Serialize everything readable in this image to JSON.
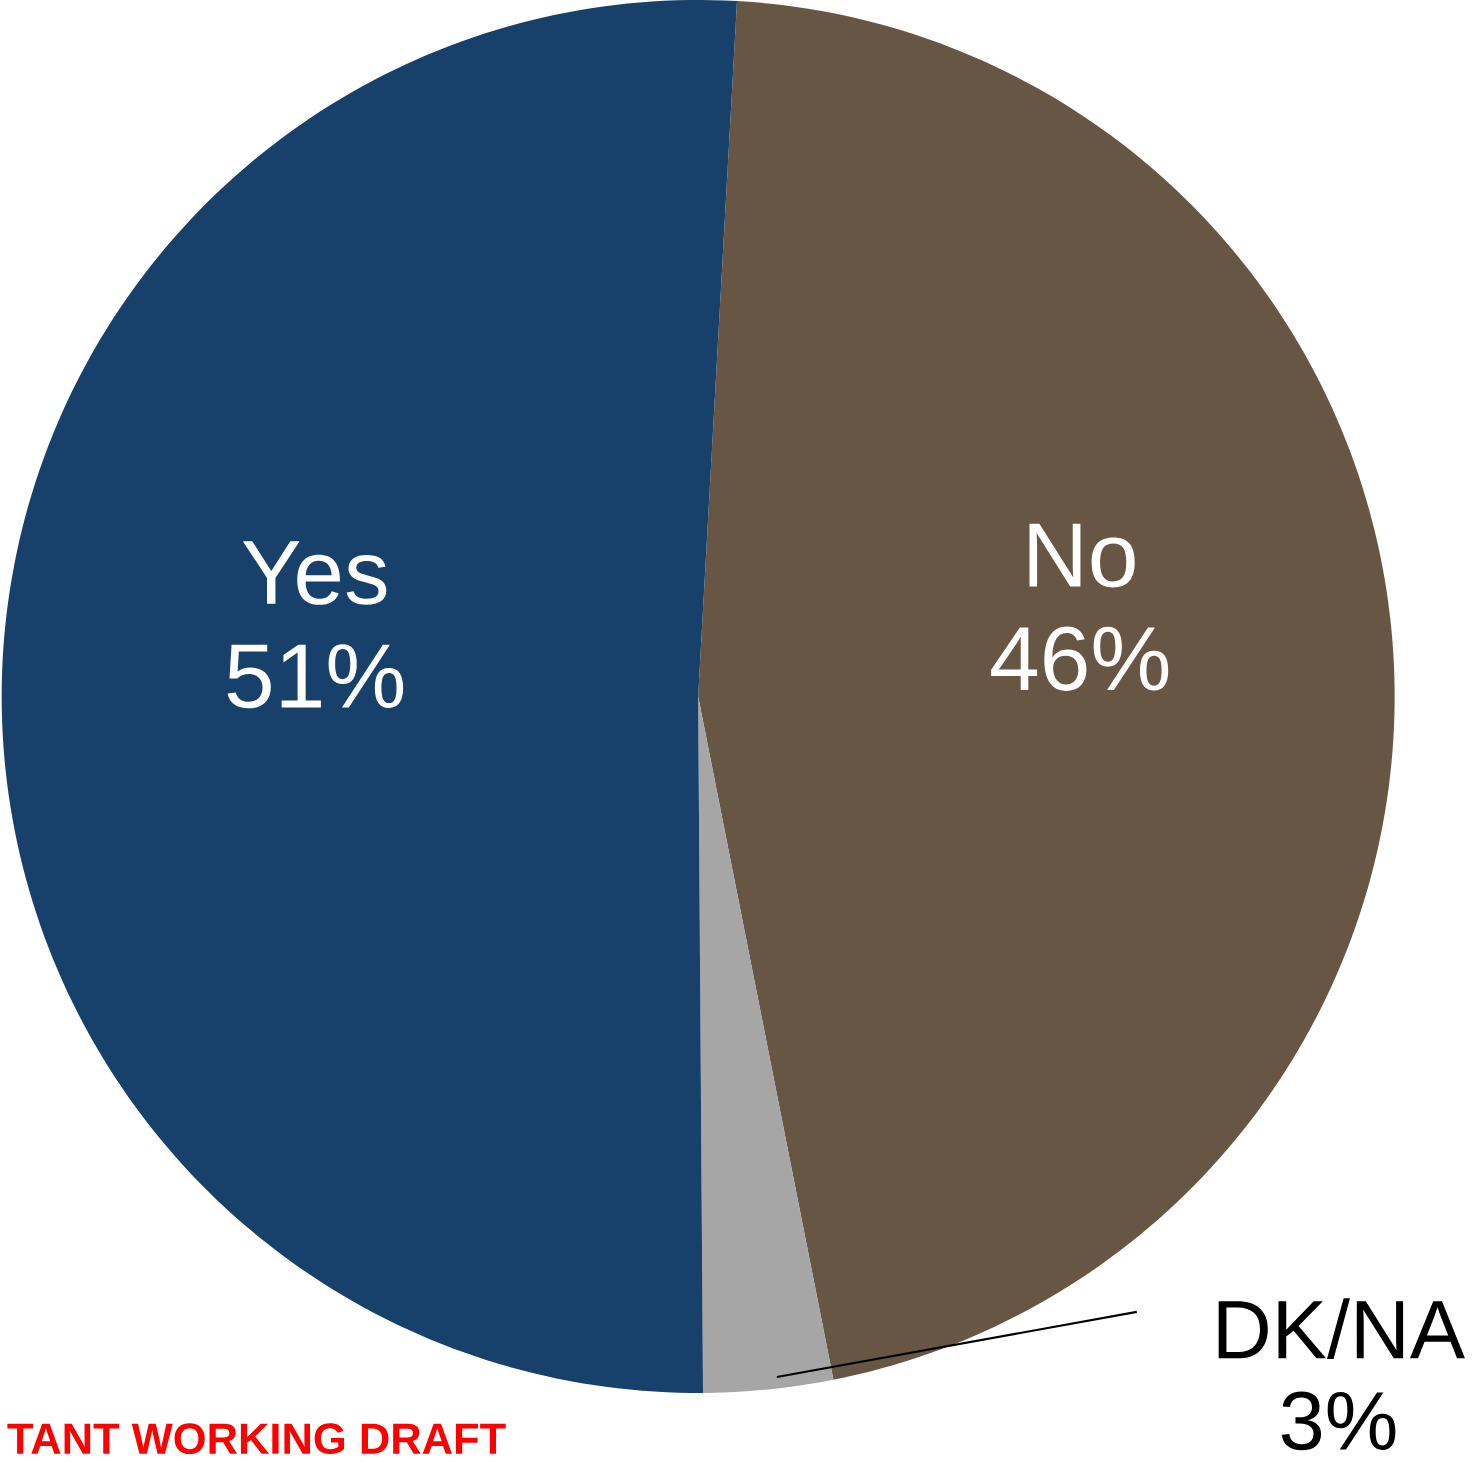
{
  "chart_data": {
    "type": "pie",
    "categories": [
      "No",
      "DK/NA",
      "Yes"
    ],
    "values": [
      46,
      3,
      51
    ],
    "colors": [
      "#685645",
      "#a6a6a6",
      "#17406a"
    ],
    "value_labels": [
      "46%",
      "3%",
      "51%"
    ],
    "annotations": [
      "TANT WORKING DRAFT"
    ]
  }
}
